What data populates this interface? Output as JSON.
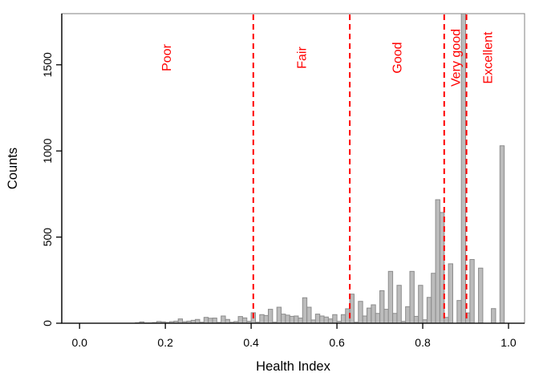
{
  "chart_data": {
    "type": "bar",
    "subtype": "histogram",
    "title": "",
    "xlabel": "Health Index",
    "ylabel": "Counts",
    "bin_start": 0.13,
    "bin_width": 0.01,
    "counts": [
      3,
      8,
      2,
      2,
      4,
      10,
      8,
      5,
      9,
      12,
      25,
      9,
      12,
      17,
      22,
      6,
      34,
      29,
      30,
      5,
      42,
      22,
      6,
      10,
      39,
      31,
      11,
      61,
      6,
      50,
      45,
      81,
      6,
      93,
      53,
      47,
      40,
      42,
      30,
      148,
      93,
      19,
      53,
      42,
      36,
      25,
      50,
      11,
      50,
      84,
      169,
      6,
      127,
      42,
      88,
      107,
      57,
      189,
      81,
      301,
      57,
      220,
      11,
      96,
      301,
      40,
      220,
      20,
      150,
      290,
      717,
      643,
      34,
      345,
      0,
      132,
      1797,
      60,
      370,
      0,
      320,
      0,
      0,
      85,
      0,
      1030,
      0
    ],
    "x_ticks": [
      0.0,
      0.2,
      0.4,
      0.6,
      0.8,
      1.0
    ],
    "x_tick_labels": [
      "0.0",
      "0.2",
      "0.4",
      "0.6",
      "0.8",
      "1.0"
    ],
    "y_ticks": [
      0,
      500,
      1000,
      1500
    ],
    "y_tick_labels": [
      "0",
      "500",
      "1000",
      "1500"
    ],
    "xlim": [
      -0.0415,
      1.0374
    ],
    "ylim": [
      0,
      1797
    ],
    "grid": false,
    "legend": false,
    "thresholds": [
      0.405,
      0.63,
      0.85,
      0.902
    ],
    "threshold_style": "dashed",
    "regions": [
      {
        "label": "Poor",
        "from": 0.0,
        "to": 0.405
      },
      {
        "label": "Fair",
        "from": 0.405,
        "to": 0.63
      },
      {
        "label": "Good",
        "from": 0.63,
        "to": 0.85
      },
      {
        "label": "Very good",
        "from": 0.85,
        "to": 0.902
      },
      {
        "label": "Excellent",
        "from": 0.902,
        "to": 1.0
      }
    ],
    "colors": {
      "bar_fill": "#bcbcbc",
      "bar_border": "#8c8c8c",
      "threshold": "#ff0000",
      "region_label": "#ff0000",
      "box": "#808080",
      "axis": "#1a1a1a",
      "text": "#000000"
    }
  }
}
